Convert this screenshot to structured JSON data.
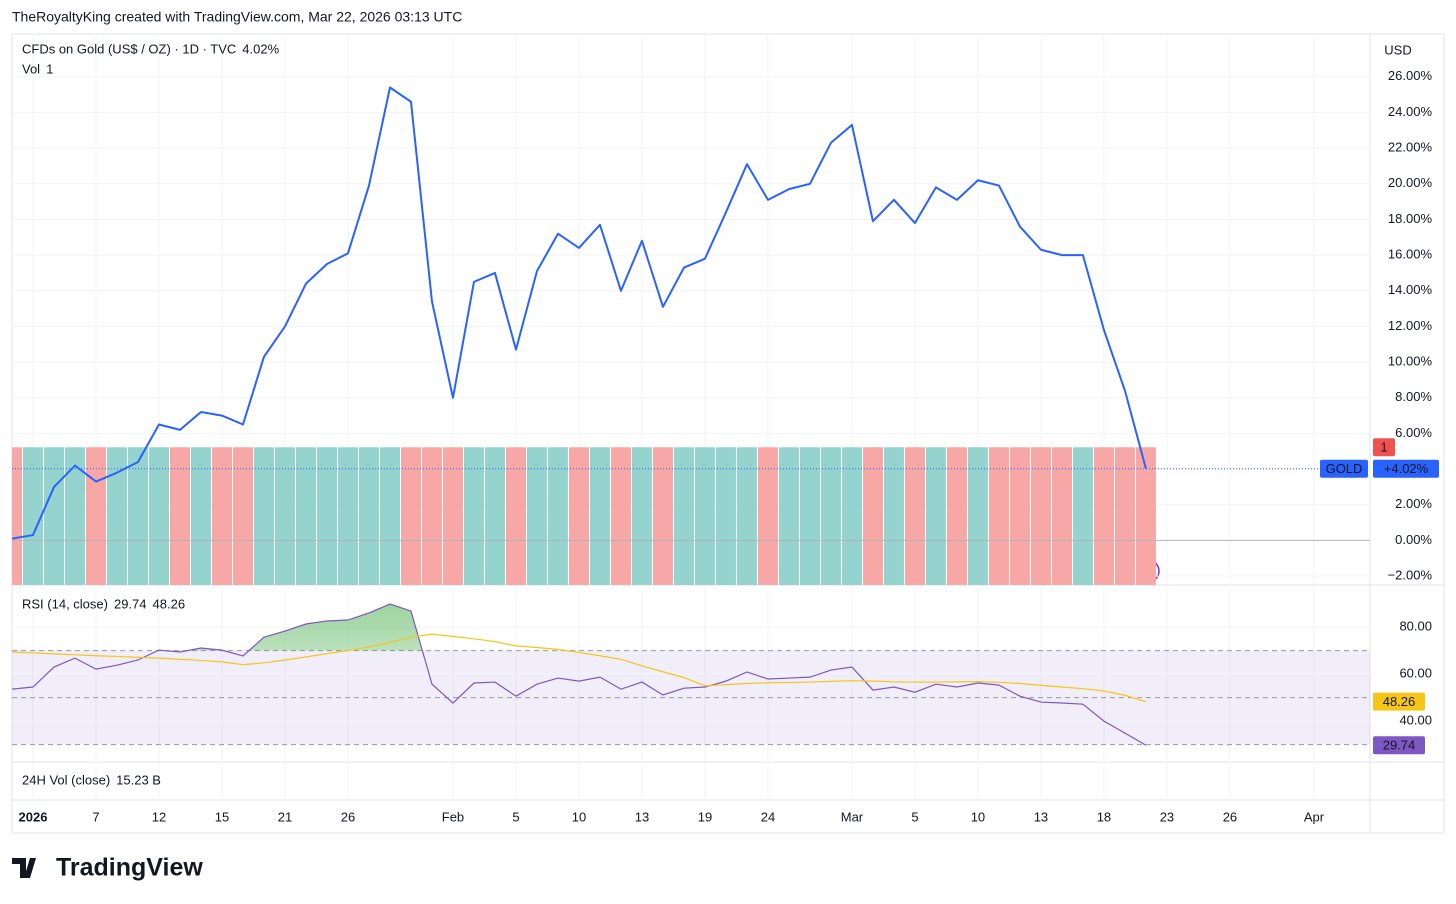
{
  "header": "TheRoyaltyKing created with TradingView.com, Mar 22, 2026 03:13 UTC",
  "brand": "TradingView",
  "chart_data": [
    {
      "type": "line",
      "title": "CFDs on Gold (US$ / OZ) · 1D · TVC",
      "legend_value": "4.02%",
      "currency": "USD",
      "xlim": [
        0,
        64.67
      ],
      "xticks": [
        {
          "value": 1,
          "label": "2026"
        },
        {
          "value": 4,
          "label": "7"
        },
        {
          "value": 7,
          "label": "12"
        },
        {
          "value": 10,
          "label": "15"
        },
        {
          "value": 13,
          "label": "21"
        },
        {
          "value": 16,
          "label": "26"
        },
        {
          "value": 21,
          "label": "Feb"
        },
        {
          "value": 24,
          "label": "5"
        },
        {
          "value": 27,
          "label": "10"
        },
        {
          "value": 30,
          "label": "13"
        },
        {
          "value": 33,
          "label": "19"
        },
        {
          "value": 36,
          "label": "24"
        },
        {
          "value": 40,
          "label": "Mar"
        },
        {
          "value": 43,
          "label": "5"
        },
        {
          "value": 46,
          "label": "10"
        },
        {
          "value": 49,
          "label": "13"
        },
        {
          "value": 52,
          "label": "18"
        },
        {
          "value": 55,
          "label": "23"
        },
        {
          "value": 58,
          "label": "26"
        },
        {
          "value": 62,
          "label": "Apr"
        }
      ],
      "ylim": [
        -2.5,
        28.4
      ],
      "yticks": [
        {
          "value": -2,
          "label": "−2.00%"
        },
        {
          "value": 0,
          "label": "0.00%"
        },
        {
          "value": 2,
          "label": "2.00%"
        },
        {
          "value": 4,
          "label": "4.00%"
        },
        {
          "value": 6,
          "label": "6.00%"
        },
        {
          "value": 8,
          "label": "8.00%"
        },
        {
          "value": 10,
          "label": "10.00%"
        },
        {
          "value": 12,
          "label": "12.00%"
        },
        {
          "value": 14,
          "label": "14.00%"
        },
        {
          "value": 16,
          "label": "16.00%"
        },
        {
          "value": 18,
          "label": "18.00%"
        },
        {
          "value": 20,
          "label": "20.00%"
        },
        {
          "value": 22,
          "label": "22.00%"
        },
        {
          "value": 24,
          "label": "24.00%"
        },
        {
          "value": 26,
          "label": "26.00%"
        }
      ],
      "grid": true,
      "series": [
        {
          "name": "GOLD",
          "color": "#2962ff",
          "last_label": "+4.02%",
          "values": [
            0.1,
            0.3,
            3.0,
            4.2,
            3.3,
            3.8,
            4.4,
            6.5,
            6.2,
            7.2,
            7.0,
            6.5,
            10.3,
            12.0,
            14.4,
            15.5,
            16.1,
            19.9,
            25.4,
            24.6,
            13.4,
            8.0,
            14.5,
            15.0,
            10.7,
            15.1,
            17.2,
            16.4,
            17.7,
            14.0,
            16.8,
            13.1,
            15.3,
            15.8,
            18.4,
            21.1,
            19.1,
            19.7,
            20.0,
            22.3,
            23.3,
            17.9,
            19.1,
            17.8,
            19.8,
            19.1,
            20.2,
            19.9,
            17.6,
            16.3,
            16.0,
            16.0,
            11.8,
            8.4,
            4.02
          ]
        }
      ]
    },
    {
      "type": "bar",
      "title": "Vol",
      "ylim": [
        0,
        4
      ],
      "up_color": "#95d4ce",
      "down_color": "#f7a8a6",
      "values": [
        1,
        1,
        1,
        1,
        1,
        1,
        1,
        1,
        1,
        1,
        1,
        1,
        1,
        1,
        1,
        1,
        1,
        1,
        1,
        1,
        1,
        1,
        1,
        1,
        1,
        1,
        1,
        1,
        1,
        1,
        1,
        1,
        1,
        1,
        1,
        1,
        1,
        1,
        1,
        1,
        1,
        1,
        1,
        1,
        1,
        1,
        1,
        1,
        1,
        1,
        1,
        1,
        1,
        1,
        1
      ]
    },
    {
      "type": "rsi",
      "title": "RSI (14, close)",
      "ylim": [
        22.6,
        97.9
      ],
      "yticks": [
        {
          "value": 40,
          "label": "40.00"
        },
        {
          "value": 60,
          "label": "60.00"
        },
        {
          "value": 80,
          "label": "80.00"
        }
      ],
      "levels": [
        70,
        50,
        30
      ],
      "series": [
        {
          "color": "#7e57c2",
          "values": [
            53.6,
            54.5,
            63.0,
            66.8,
            62.1,
            63.8,
            66.0,
            70.2,
            69.4,
            71.1,
            70.2,
            67.7,
            75.7,
            78.3,
            81.3,
            82.6,
            83.0,
            86.0,
            89.8,
            86.8,
            55.7,
            47.7,
            56.2,
            56.6,
            50.6,
            55.7,
            58.3,
            57.0,
            58.7,
            53.6,
            56.6,
            51.1,
            54.0,
            54.5,
            57.0,
            60.9,
            57.9,
            58.3,
            58.7,
            61.7,
            63.0,
            53.2,
            54.5,
            52.3,
            55.7,
            54.5,
            56.2,
            55.3,
            50.6,
            48.1,
            47.7,
            47.2,
            40.0,
            34.9,
            29.74
          ]
        },
        {
          "color": "#f5c518",
          "values": [
            69.4,
            69.0,
            68.6,
            68.2,
            67.8,
            67.5,
            67.1,
            66.8,
            66.3,
            65.8,
            65.2,
            64.0,
            64.8,
            66.0,
            67.3,
            68.7,
            70.0,
            71.5,
            73.5,
            75.7,
            77.0,
            76.0,
            75.0,
            73.8,
            72.0,
            71.3,
            70.5,
            69.2,
            67.8,
            66.3,
            63.5,
            61.0,
            58.5,
            55.0,
            55.5,
            56.0,
            56.3,
            56.4,
            56.6,
            56.9,
            57.2,
            57.0,
            56.7,
            56.6,
            56.6,
            56.7,
            56.8,
            56.5,
            56.0,
            55.2,
            54.5,
            53.8,
            52.8,
            51.0,
            48.26
          ]
        }
      ]
    },
    {
      "type": "indicator",
      "title": "24H Vol (close)",
      "value": 15230000000,
      "value_label": "15.23 B"
    }
  ]
}
